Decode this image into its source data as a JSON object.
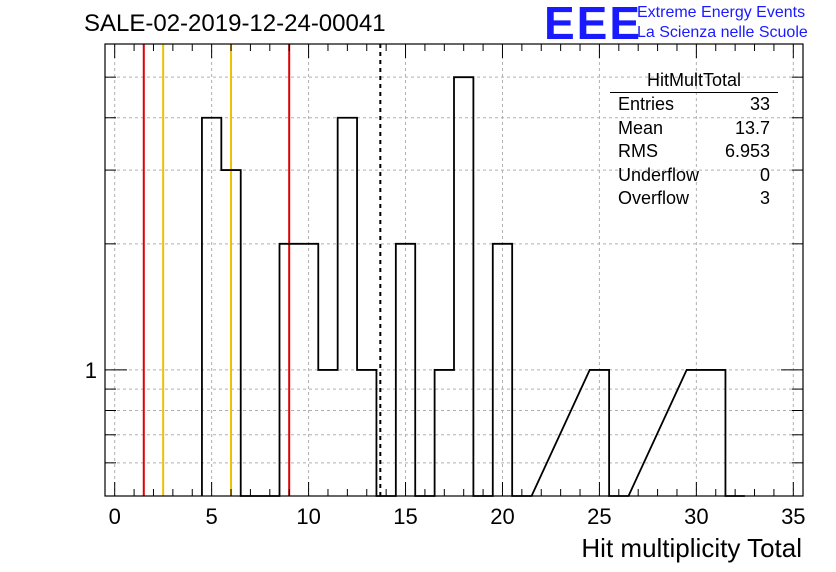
{
  "header": {
    "title": "SALE-02-2019-12-24-00041"
  },
  "logo": {
    "mark": "EEE",
    "line1": "Extreme Energy Events",
    "line2": "La Scienza nelle Scuole",
    "color": "#1a1aff"
  },
  "stats": {
    "title": "HitMultTotal",
    "rows": [
      {
        "label": "Entries",
        "value": "33"
      },
      {
        "label": "Mean",
        "value": "13.7"
      },
      {
        "label": "RMS",
        "value": "6.953"
      },
      {
        "label": "Underflow",
        "value": "0"
      },
      {
        "label": "Overflow",
        "value": "3"
      }
    ]
  },
  "chart_data": {
    "type": "histogram",
    "title": "SALE-02-2019-12-24-00041",
    "xlabel": "Hit multiplicity Total",
    "ylabel": "",
    "xlim": [
      -0.5,
      35.5
    ],
    "ylim": [
      0.5,
      6
    ],
    "yscale": "log",
    "grid": true,
    "xticks": [
      0,
      5,
      10,
      15,
      20,
      25,
      30,
      35
    ],
    "yticks": [
      1
    ],
    "bin_width": 1,
    "bins": [
      {
        "x": 4.5,
        "count": 4
      },
      {
        "x": 5.5,
        "count": 3
      },
      {
        "x": 6.5,
        "count": 0
      },
      {
        "x": 7.5,
        "count": 0
      },
      {
        "x": 8.5,
        "count": 2
      },
      {
        "x": 9.5,
        "count": 2
      },
      {
        "x": 10.5,
        "count": 1
      },
      {
        "x": 11.5,
        "count": 4
      },
      {
        "x": 12.5,
        "count": 1
      },
      {
        "x": 13.5,
        "count": 0
      },
      {
        "x": 14.5,
        "count": 2
      },
      {
        "x": 15.5,
        "count": 0
      },
      {
        "x": 16.5,
        "count": 1
      },
      {
        "x": 17.5,
        "count": 5
      },
      {
        "x": 18.5,
        "count": 0
      },
      {
        "x": 19.5,
        "count": 2
      },
      {
        "x": 20.5,
        "count": 0
      },
      {
        "x": 24.5,
        "count": 1
      },
      {
        "x": 25.5,
        "count": 0
      },
      {
        "x": 29.5,
        "count": 1
      },
      {
        "x": 30.5,
        "count": 1
      },
      {
        "x": 31.5,
        "count": 0
      }
    ],
    "vertical_lines": [
      {
        "x": 1.5,
        "color": "#e00000",
        "style": "solid"
      },
      {
        "x": 2.5,
        "color": "#f0c000",
        "style": "solid"
      },
      {
        "x": 6.0,
        "color": "#f0c000",
        "style": "solid"
      },
      {
        "x": 9.0,
        "color": "#e00000",
        "style": "solid"
      },
      {
        "x": 13.7,
        "color": "#000000",
        "style": "dashed"
      }
    ]
  }
}
